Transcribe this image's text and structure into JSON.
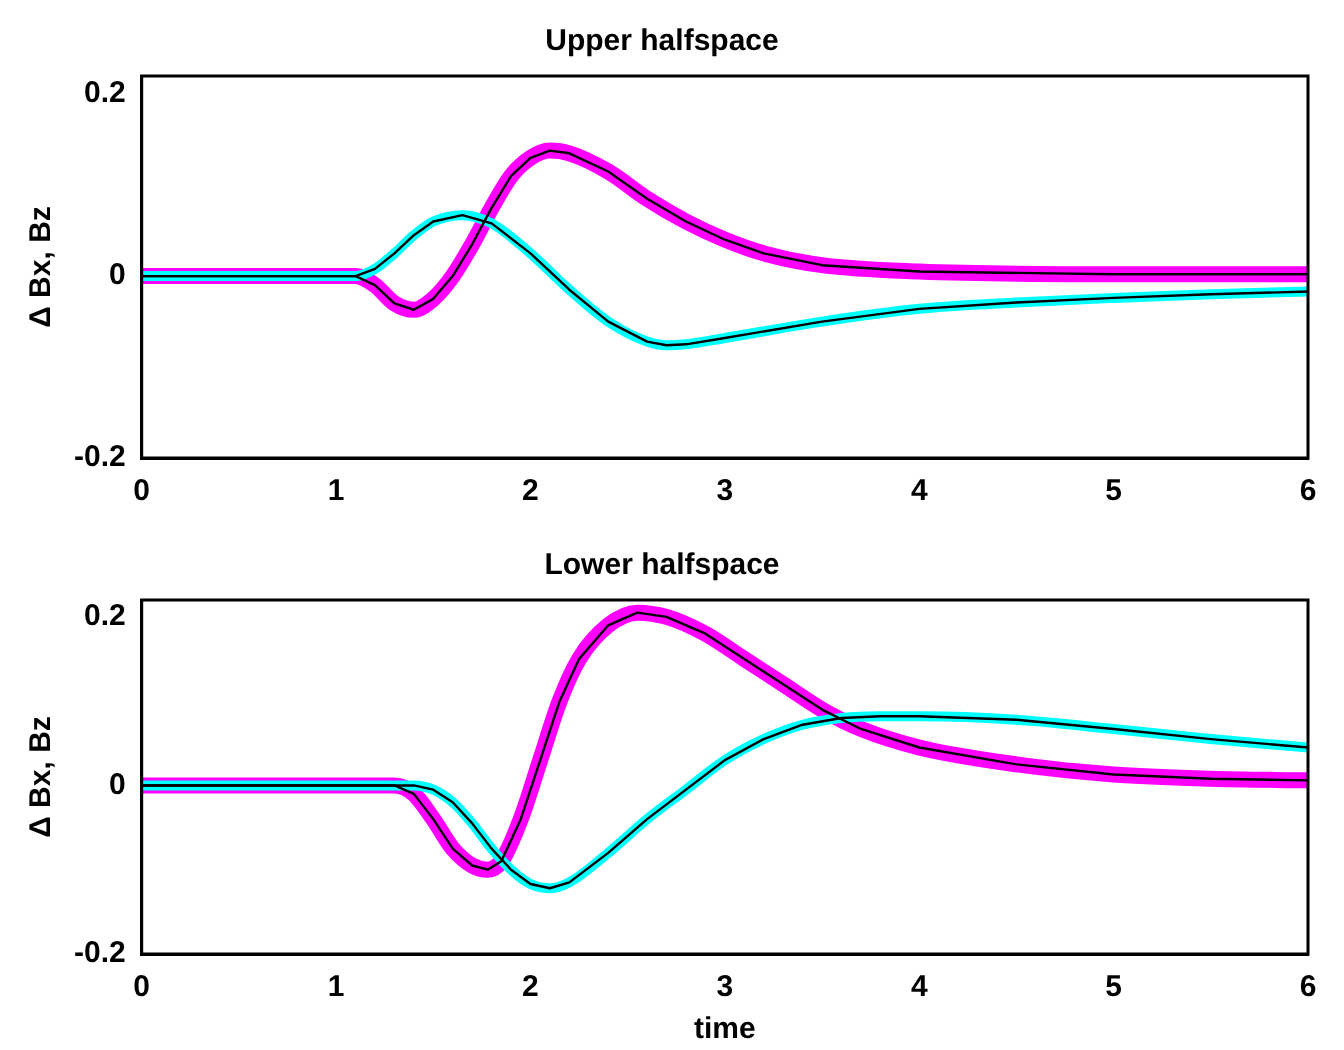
{
  "chart_data": [
    {
      "type": "line",
      "title": "Upper halfspace",
      "ylabel": "Δ Bx, Bz",
      "xlim": [
        0,
        6
      ],
      "xticks": [
        0,
        1,
        2,
        3,
        4,
        5,
        6
      ],
      "ylim": [
        -0.2,
        0.22
      ],
      "yticks": [
        -0.2,
        0,
        0.2
      ],
      "grid": false,
      "legend": false,
      "marker": "none",
      "series": [
        {
          "color": "#ff00ff",
          "x": [
            0,
            0.5,
            1,
            1.1,
            1.2,
            1.3,
            1.4,
            1.5,
            1.6,
            1.7,
            1.8,
            1.9,
            2,
            2.1,
            2.2,
            2.4,
            2.6,
            2.8,
            3,
            3.2,
            3.5,
            4,
            5,
            6
          ],
          "values": [
            0,
            0,
            0,
            0,
            -0.01,
            -0.03,
            -0.037,
            -0.025,
            0,
            0.035,
            0.075,
            0.11,
            0.13,
            0.138,
            0.135,
            0.115,
            0.085,
            0.06,
            0.04,
            0.025,
            0.012,
            0.005,
            0.002,
            0.002
          ]
        },
        {
          "color": "#00ffff",
          "x": [
            0,
            0.5,
            1,
            1.1,
            1.2,
            1.3,
            1.4,
            1.5,
            1.65,
            1.8,
            2,
            2.2,
            2.4,
            2.6,
            2.7,
            2.8,
            3,
            3.5,
            4,
            4.5,
            5,
            5.5,
            6
          ],
          "values": [
            0,
            0,
            0,
            0,
            0.008,
            0.025,
            0.045,
            0.06,
            0.067,
            0.058,
            0.025,
            -0.015,
            -0.05,
            -0.072,
            -0.076,
            -0.075,
            -0.068,
            -0.05,
            -0.036,
            -0.029,
            -0.024,
            -0.02,
            -0.017
          ]
        }
      ]
    },
    {
      "type": "line",
      "title": "Lower halfspace",
      "xlabel": "time",
      "ylabel": "Δ Bx, Bz",
      "xlim": [
        0,
        6
      ],
      "xticks": [
        0,
        1,
        2,
        3,
        4,
        5,
        6
      ],
      "ylim": [
        -0.2,
        0.22
      ],
      "yticks": [
        -0.2,
        0,
        0.2
      ],
      "grid": false,
      "legend": false,
      "marker": "none",
      "series": [
        {
          "color": "#ff00ff",
          "x": [
            0,
            0.5,
            1,
            1.3,
            1.4,
            1.5,
            1.6,
            1.7,
            1.78,
            1.85,
            1.95,
            2.05,
            2.15,
            2.25,
            2.4,
            2.55,
            2.7,
            2.9,
            3.1,
            3.3,
            3.5,
            3.7,
            4,
            4.5,
            5,
            5.5,
            6
          ],
          "values": [
            0,
            0,
            0,
            0,
            -0.01,
            -0.04,
            -0.075,
            -0.095,
            -0.1,
            -0.09,
            -0.04,
            0.03,
            0.1,
            0.15,
            0.19,
            0.205,
            0.2,
            0.18,
            0.15,
            0.12,
            0.09,
            0.067,
            0.045,
            0.025,
            0.013,
            0.008,
            0.006
          ]
        },
        {
          "color": "#00ffff",
          "x": [
            0,
            0.5,
            1,
            1.4,
            1.5,
            1.6,
            1.7,
            1.8,
            1.9,
            2,
            2.1,
            2.2,
            2.4,
            2.6,
            2.8,
            3,
            3.2,
            3.4,
            3.6,
            3.8,
            4,
            4.5,
            5,
            5.5,
            6
          ],
          "values": [
            0,
            0,
            0,
            0,
            -0.005,
            -0.02,
            -0.045,
            -0.075,
            -0.1,
            -0.117,
            -0.122,
            -0.115,
            -0.08,
            -0.04,
            -0.005,
            0.03,
            0.055,
            0.072,
            0.08,
            0.082,
            0.082,
            0.078,
            0.067,
            0.055,
            0.045
          ]
        }
      ]
    }
  ]
}
